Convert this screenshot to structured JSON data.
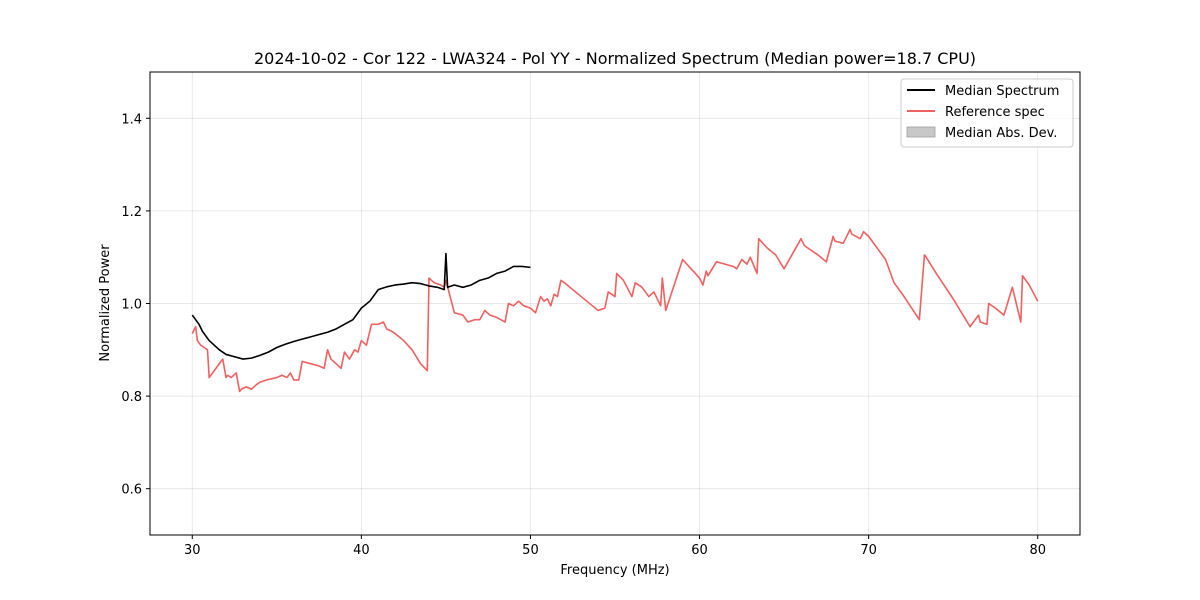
{
  "chart_data": {
    "type": "line",
    "title": "2024-10-02 - Cor 122 - LWA324 - Pol YY - Normalized Spectrum (Median power=18.7 CPU)",
    "xlabel": "Frequency (MHz)",
    "ylabel": "Normalized Power",
    "xlim": [
      27.5,
      82.5
    ],
    "ylim": [
      0.5,
      1.5
    ],
    "xticks": [
      30,
      40,
      50,
      60,
      70,
      80
    ],
    "yticks": [
      0.6,
      0.8,
      1.0,
      1.2,
      1.4
    ],
    "xtick_labels": [
      "30",
      "40",
      "50",
      "60",
      "70",
      "80"
    ],
    "ytick_labels": [
      "0.6",
      "0.8",
      "1.0",
      "1.2",
      "1.4"
    ],
    "grid": true,
    "legend_position": "top-right",
    "colors": {
      "median": "#000000",
      "reference": "#f06060",
      "mad": "#c8c8c8"
    },
    "legend": [
      {
        "label": "Median Spectrum",
        "kind": "line",
        "color": "#000000"
      },
      {
        "label": "Reference spec",
        "kind": "line",
        "color": "#f06060"
      },
      {
        "label": "Median Abs. Dev.",
        "kind": "patch",
        "color": "#c8c8c8"
      }
    ],
    "series": [
      {
        "name": "Median Spectrum",
        "color": "#000000",
        "x": [
          30.0,
          30.2,
          30.4,
          30.6,
          30.8,
          31.0,
          31.3,
          31.6,
          32.0,
          32.5,
          33.0,
          33.5,
          34.0,
          34.5,
          35.0,
          35.5,
          36.0,
          36.5,
          37.0,
          37.5,
          38.0,
          38.5,
          39.0,
          39.5,
          40.0,
          40.5,
          41.0,
          41.5,
          42.0,
          42.5,
          43.0,
          43.5,
          44.0,
          44.5,
          44.9,
          45.0,
          45.1,
          45.5,
          46.0,
          46.5,
          47.0,
          47.5,
          48.0,
          48.5,
          49.0,
          49.5,
          50.0
        ],
        "y": [
          0.975,
          0.965,
          0.955,
          0.94,
          0.93,
          0.92,
          0.91,
          0.9,
          0.89,
          0.885,
          0.88,
          0.882,
          0.888,
          0.895,
          0.905,
          0.912,
          0.918,
          0.923,
          0.928,
          0.933,
          0.938,
          0.945,
          0.955,
          0.965,
          0.99,
          1.005,
          1.03,
          1.036,
          1.04,
          1.042,
          1.045,
          1.043,
          1.038,
          1.035,
          1.03,
          1.108,
          1.035,
          1.04,
          1.035,
          1.04,
          1.05,
          1.055,
          1.065,
          1.07,
          1.08,
          1.08,
          1.078
        ]
      },
      {
        "name": "Reference spec",
        "color": "#f06060",
        "x": [
          30.0,
          30.2,
          30.3,
          30.5,
          30.7,
          30.9,
          31.0,
          31.2,
          31.5,
          31.8,
          32.0,
          32.1,
          32.3,
          32.6,
          32.8,
          32.9,
          33.2,
          33.5,
          33.8,
          34.0,
          34.4,
          35.0,
          35.3,
          35.6,
          35.8,
          36.0,
          36.3,
          36.5,
          37.0,
          37.5,
          37.8,
          38.0,
          38.2,
          38.5,
          38.8,
          39.0,
          39.3,
          39.6,
          39.8,
          40.0,
          40.3,
          40.6,
          41.0,
          41.3,
          41.5,
          41.8,
          42.0,
          42.5,
          43.0,
          43.5,
          43.9,
          44.0,
          44.3,
          44.7,
          44.9,
          45.0,
          45.5,
          46.0,
          46.3,
          46.7,
          47.0,
          47.3,
          47.6,
          48.0,
          48.5,
          48.7,
          49.0,
          49.3,
          49.6,
          50.0,
          50.3,
          50.6,
          50.8,
          51.0,
          51.2,
          51.4,
          51.6,
          51.8,
          52.0,
          53.0,
          54.0,
          54.4,
          54.6,
          55.0,
          55.1,
          55.5,
          56.0,
          56.2,
          56.6,
          57.0,
          57.3,
          57.7,
          57.8,
          58.0,
          59.0,
          59.5,
          60.0,
          60.2,
          60.4,
          60.5,
          61.0,
          61.5,
          62.0,
          62.2,
          62.5,
          62.8,
          63.0,
          63.4,
          63.5,
          64.0,
          64.5,
          65.0,
          66.0,
          66.2,
          67.0,
          67.5,
          67.9,
          68.0,
          68.5,
          68.9,
          69.0,
          69.5,
          69.7,
          70.0,
          71.0,
          71.5,
          72.0,
          73.0,
          73.3,
          73.4,
          74.0,
          75.0,
          76.0,
          76.5,
          76.6,
          77.0,
          77.1,
          77.5,
          78.0,
          78.5,
          79.0,
          79.1,
          79.5,
          80.0
        ],
        "y": [
          0.935,
          0.95,
          0.92,
          0.91,
          0.905,
          0.9,
          0.84,
          0.85,
          0.865,
          0.88,
          0.84,
          0.845,
          0.84,
          0.85,
          0.81,
          0.815,
          0.82,
          0.815,
          0.825,
          0.83,
          0.835,
          0.84,
          0.845,
          0.84,
          0.85,
          0.835,
          0.835,
          0.875,
          0.87,
          0.865,
          0.86,
          0.9,
          0.88,
          0.87,
          0.86,
          0.895,
          0.88,
          0.9,
          0.895,
          0.92,
          0.91,
          0.955,
          0.955,
          0.96,
          0.945,
          0.94,
          0.935,
          0.92,
          0.9,
          0.87,
          0.855,
          1.055,
          1.045,
          1.04,
          1.035,
          1.05,
          0.98,
          0.975,
          0.96,
          0.965,
          0.965,
          0.985,
          0.975,
          0.97,
          0.96,
          1.0,
          0.995,
          1.005,
          0.995,
          0.99,
          0.98,
          1.015,
          1.005,
          1.01,
          0.995,
          1.02,
          1.015,
          1.05,
          1.045,
          1.015,
          0.985,
          0.99,
          1.025,
          1.015,
          1.065,
          1.05,
          1.015,
          1.045,
          1.035,
          1.015,
          1.025,
          0.995,
          1.055,
          0.985,
          1.095,
          1.075,
          1.055,
          1.04,
          1.07,
          1.06,
          1.09,
          1.085,
          1.08,
          1.075,
          1.095,
          1.085,
          1.1,
          1.065,
          1.14,
          1.12,
          1.105,
          1.075,
          1.14,
          1.125,
          1.105,
          1.09,
          1.145,
          1.135,
          1.13,
          1.16,
          1.15,
          1.14,
          1.155,
          1.145,
          1.095,
          1.045,
          1.02,
          0.965,
          1.105,
          1.1,
          1.065,
          1.01,
          0.95,
          0.975,
          0.96,
          0.955,
          1.0,
          0.99,
          0.975,
          1.035,
          0.96,
          1.06,
          1.04,
          1.005
        ]
      }
    ]
  }
}
